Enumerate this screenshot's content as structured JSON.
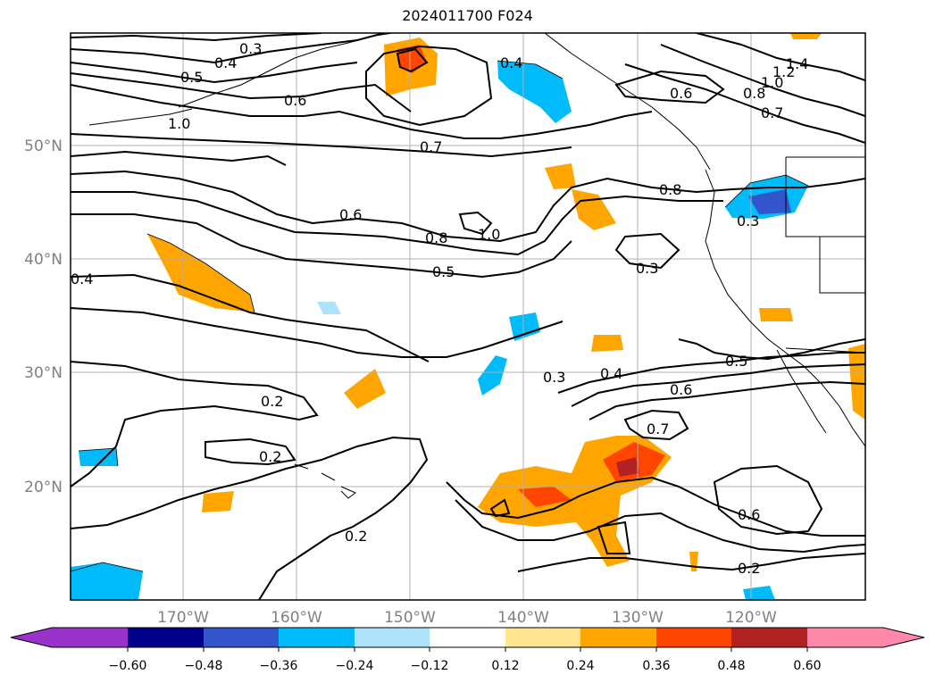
{
  "title": "2024011700 F024",
  "map": {
    "lat_labels": [
      "50°N",
      "40°N",
      "30°N",
      "20°N"
    ],
    "lon_labels": [
      "170°W",
      "160°W",
      "150°W",
      "140°W",
      "130°W",
      "120°W"
    ],
    "axis_label_color": "#808080",
    "grid_color": "#b0b0b0",
    "contour_labels": [
      "0.3",
      "0.4",
      "0.5",
      "0.6",
      "1.0",
      "0.4",
      "0.6",
      "1.4",
      "1.2",
      "1.0",
      "0.8",
      "0.7",
      "0.7",
      "0.8",
      "0.6",
      "1.0",
      "0.8",
      "0.3",
      "0.4",
      "0.5",
      "0.3",
      "0.3",
      "0.4",
      "0.5",
      "0.6",
      "0.7",
      "0.2",
      "0.2",
      "0.6",
      "0.2",
      "0.2"
    ]
  },
  "colorbar": {
    "tick_labels": [
      "−0.60",
      "−0.48",
      "−0.36",
      "−0.24",
      "−0.12",
      "0.12",
      "0.24",
      "0.36",
      "0.48",
      "0.60"
    ],
    "colors": [
      "#9933cc",
      "#00008b",
      "#3355cc",
      "#00bbf9",
      "#aee2fa",
      "#ffffff",
      "#ffe58f",
      "#ffa500",
      "#ff4500",
      "#b22222",
      "#ff88aa"
    ]
  }
}
